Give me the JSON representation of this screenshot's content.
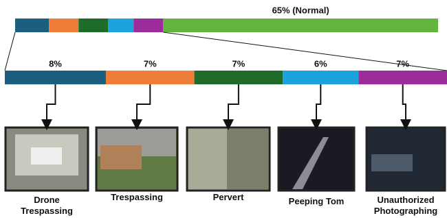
{
  "chart_data": {
    "type": "bar",
    "orientation": "horizontal",
    "stacked": true,
    "series": [
      {
        "name": "Drone Trespassing",
        "color": "#1b5e80",
        "values": [
          8
        ],
        "value_labels": [
          "8%"
        ]
      },
      {
        "name": "Trespassing",
        "color": "#ef7d3a",
        "values": [
          7
        ],
        "value_labels": [
          "7%"
        ]
      },
      {
        "name": "Pervert",
        "color": "#1e6b2a",
        "values": [
          7
        ],
        "value_labels": [
          "7%"
        ]
      },
      {
        "name": "Peeping Tom",
        "color": "#1ca3de",
        "values": [
          6
        ],
        "value_labels": [
          "6%"
        ]
      },
      {
        "name": "Unauthorized Photographing",
        "color": "#9c2b9c",
        "values": [
          7
        ],
        "value_labels": [
          "7%"
        ]
      },
      {
        "color": "#62b43c",
        "values": [
          65
        ],
        "value_labels": [
          "65% (Normal)"
        ]
      }
    ]
  }
}
